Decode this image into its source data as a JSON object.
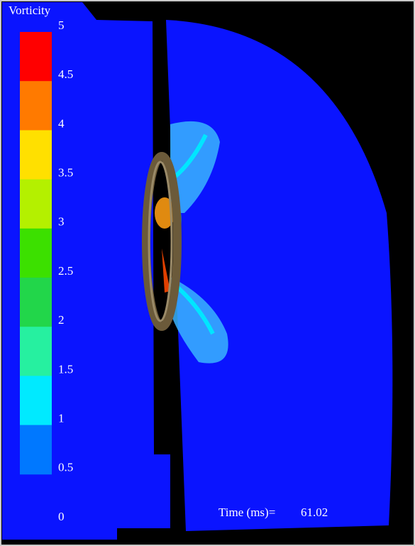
{
  "colorbar": {
    "title": "Vorticity",
    "ticks": [
      "5",
      "4.5",
      "4",
      "3.5",
      "3",
      "2.5",
      "2",
      "1.5",
      "1",
      "0.5",
      "0"
    ],
    "band_colors": [
      "#ff0000",
      "#ff7a00",
      "#ffe000",
      "#b4f000",
      "#3ce000",
      "#22d64a",
      "#26f0a0",
      "#00eaff",
      "#0078ff"
    ]
  },
  "time": {
    "label": "Time (ms)=",
    "value": "61.02"
  }
}
